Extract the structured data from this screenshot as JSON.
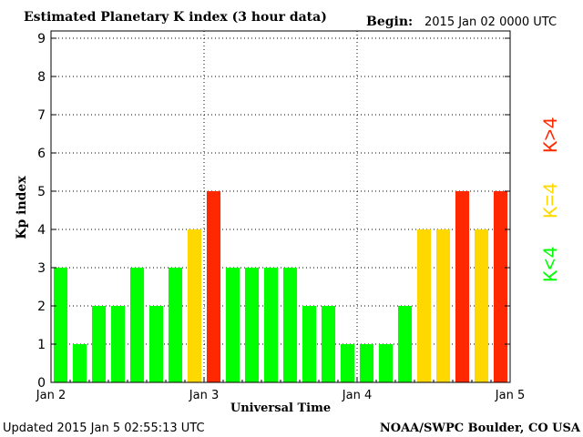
{
  "header": {
    "title": "Estimated Planetary K index (3 hour data)",
    "begin_label": "Begin:",
    "begin_value": "2015 Jan 02 0000 UTC"
  },
  "footer": {
    "updated": "Updated 2015 Jan  5 02:55:13 UTC",
    "credit": "NOAA/SWPC Boulder, CO USA"
  },
  "legend": {
    "low": "K<4",
    "mid": "K=4",
    "high": "K>4",
    "colors": {
      "low": "#00ff00",
      "mid": "#ffd800",
      "high": "#ff2800"
    }
  },
  "chart_data": {
    "type": "bar",
    "title": "Estimated Planetary K index (3 hour data)",
    "xlabel": "Universal Time",
    "ylabel": "Kp index",
    "ylim": [
      0,
      9
    ],
    "y_ticks": [
      "0",
      "1",
      "2",
      "3",
      "4",
      "5",
      "6",
      "7",
      "8",
      "9"
    ],
    "x_ticks": [
      "Jan 2",
      "Jan 3",
      "Jan 4",
      "Jan 5"
    ],
    "interval_hours": 3,
    "values": [
      3,
      1,
      2,
      2,
      3,
      2,
      3,
      4,
      5,
      3,
      3,
      3,
      3,
      2,
      2,
      1,
      1,
      1,
      2,
      4,
      4,
      5,
      4,
      5
    ],
    "grid": "dotted, at Jan 3 and Jan 4 and each Kp unit"
  }
}
